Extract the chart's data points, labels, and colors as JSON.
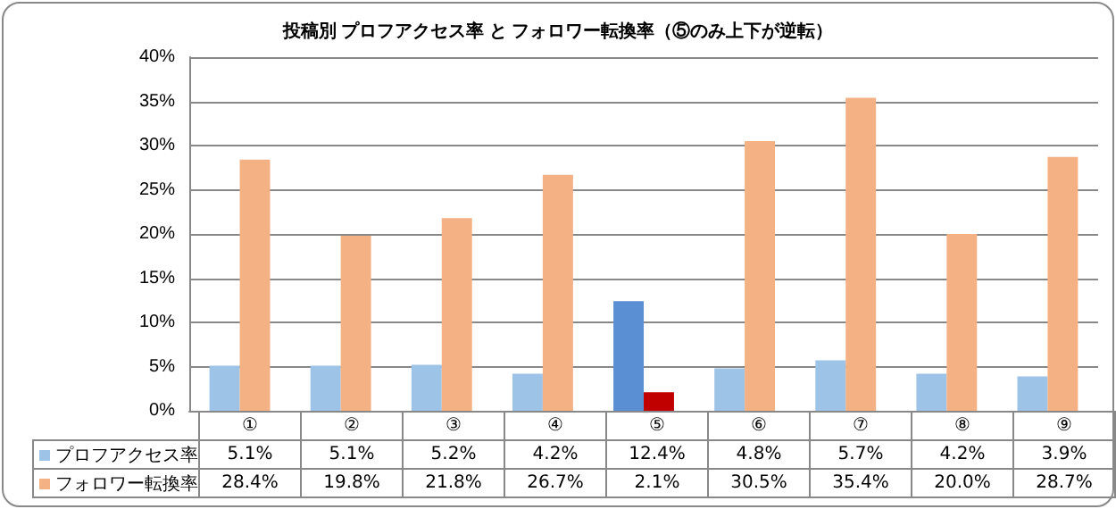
{
  "chart_data": {
    "type": "bar",
    "title": "投稿別 プロフアクセス率 と フォロワー転換率（⑤のみ上下が逆転）",
    "categories": [
      "①",
      "②",
      "③",
      "④",
      "⑤",
      "⑥",
      "⑦",
      "⑧",
      "⑨"
    ],
    "series": [
      {
        "name": "プロフアクセス率",
        "color": "#9dc3e6",
        "colors": [
          "#9dc3e6",
          "#9dc3e6",
          "#9dc3e6",
          "#9dc3e6",
          "#5b8fd4",
          "#9dc3e6",
          "#9dc3e6",
          "#9dc3e6",
          "#9dc3e6"
        ],
        "values": [
          5.1,
          5.1,
          5.2,
          4.2,
          12.4,
          4.8,
          5.7,
          4.2,
          3.9
        ],
        "value_labels": [
          "5.1%",
          "5.1%",
          "5.2%",
          "4.2%",
          "12.4%",
          "4.8%",
          "5.7%",
          "4.2%",
          "3.9%"
        ]
      },
      {
        "name": "フォロワー転換率",
        "color": "#f4b183",
        "colors": [
          "#f4b183",
          "#f4b183",
          "#f4b183",
          "#f4b183",
          "#c00000",
          "#f4b183",
          "#f4b183",
          "#f4b183",
          "#f4b183"
        ],
        "values": [
          28.4,
          19.8,
          21.8,
          26.7,
          2.1,
          30.5,
          35.4,
          20.0,
          28.7
        ],
        "value_labels": [
          "28.4%",
          "19.8%",
          "21.8%",
          "26.7%",
          "2.1%",
          "30.5%",
          "35.4%",
          "20.0%",
          "28.7%"
        ]
      }
    ],
    "ylim": [
      0,
      40
    ],
    "yticks": [
      {
        "value": 0,
        "label": "0%"
      },
      {
        "value": 5,
        "label": "5%"
      },
      {
        "value": 10,
        "label": "10%"
      },
      {
        "value": 15,
        "label": "15%"
      },
      {
        "value": 20,
        "label": "20%"
      },
      {
        "value": 25,
        "label": "25%"
      },
      {
        "value": 30,
        "label": "30%"
      },
      {
        "value": 35,
        "label": "35%"
      },
      {
        "value": 40,
        "label": "40%"
      }
    ],
    "grid": "y",
    "legend": "bottom"
  }
}
